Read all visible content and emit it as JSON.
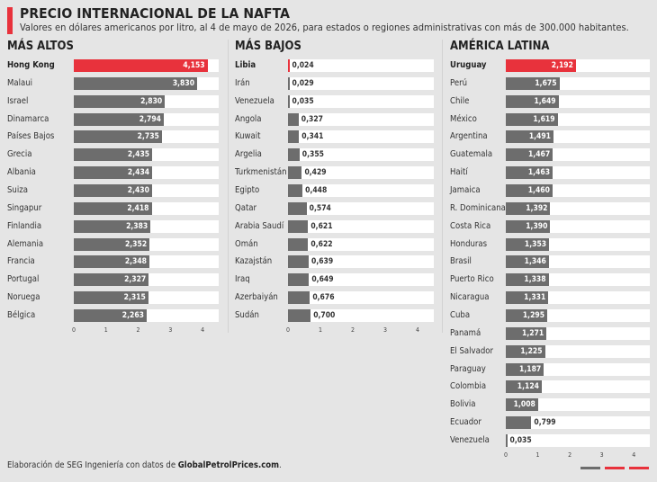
{
  "header": {
    "title": "PRECIO INTERNACIONAL DE LA NAFTA",
    "subtitle": "Valores en dólares americanos por litro, al 4 de mayo de 2026, para estados o regiones administrativas con más de 300.000 habitantes."
  },
  "footer": {
    "prefix": "Elaboración de SEG Ingeniería con datos de ",
    "source": "GlobalPetrolPrices.com",
    "suffix": "."
  },
  "colors": {
    "highlight": "#e8323c",
    "bar": "#6d6d6d",
    "track": "#ffffff",
    "background": "#e5e5e5"
  },
  "chart_data": [
    {
      "type": "bar",
      "title": "MÁS ALTOS",
      "orientation": "horizontal",
      "xlim": [
        0,
        4.5
      ],
      "ticks": [
        "0",
        "1",
        "2",
        "3",
        "4"
      ],
      "highlight": "Hong Kong",
      "categories": [
        "Hong Kong",
        "Malaui",
        "Israel",
        "Dinamarca",
        "Países Bajos",
        "Grecia",
        "Albania",
        "Suiza",
        "Singapur",
        "Finlandia",
        "Alemania",
        "Francia",
        "Portugal",
        "Noruega",
        "Bélgica"
      ],
      "values": [
        4.153,
        3.83,
        2.83,
        2.794,
        2.735,
        2.435,
        2.434,
        2.43,
        2.418,
        2.383,
        2.352,
        2.348,
        2.327,
        2.315,
        2.263
      ],
      "labels": [
        "4,153",
        "3,830",
        "2,830",
        "2,794",
        "2,735",
        "2,435",
        "2,434",
        "2,430",
        "2,418",
        "2,383",
        "2,352",
        "2,348",
        "2,327",
        "2,315",
        "2,263"
      ]
    },
    {
      "type": "bar",
      "title": "MÁS BAJOS",
      "orientation": "horizontal",
      "xlim": [
        0,
        4.5
      ],
      "ticks": [
        "0",
        "1",
        "2",
        "3",
        "4"
      ],
      "highlight": "Libia",
      "categories": [
        "Libia",
        "Irán",
        "Venezuela",
        "Angola",
        "Kuwait",
        "Argelia",
        "Turkmenistán",
        "Egipto",
        "Qatar",
        "Arabia Saudí",
        "Omán",
        "Kazajstán",
        "Iraq",
        "Azerbaiyán",
        "Sudán"
      ],
      "values": [
        0.024,
        0.029,
        0.035,
        0.327,
        0.341,
        0.355,
        0.429,
        0.448,
        0.574,
        0.621,
        0.622,
        0.639,
        0.649,
        0.676,
        0.7
      ],
      "labels": [
        "0,024",
        "0,029",
        "0,035",
        "0,327",
        "0,341",
        "0,355",
        "0,429",
        "0,448",
        "0,574",
        "0,621",
        "0,622",
        "0,639",
        "0,649",
        "0,676",
        "0,700"
      ]
    },
    {
      "type": "bar",
      "title": "AMÉRICA LATINA",
      "orientation": "horizontal",
      "xlim": [
        0,
        4.5
      ],
      "ticks": [
        "0",
        "1",
        "2",
        "3",
        "4"
      ],
      "highlight": "Uruguay",
      "categories": [
        "Uruguay",
        "Perú",
        "Chile",
        "México",
        "Argentina",
        "Guatemala",
        "Haití",
        "Jamaica",
        "R. Dominicana",
        "Costa Rica",
        "Honduras",
        "Brasil",
        "Puerto Rico",
        "Nicaragua",
        "Cuba",
        "Panamá",
        "El Salvador",
        "Paraguay",
        "Colombia",
        "Bolivia",
        "Ecuador",
        "Venezuela"
      ],
      "values": [
        2.192,
        1.675,
        1.649,
        1.619,
        1.491,
        1.467,
        1.463,
        1.46,
        1.392,
        1.39,
        1.353,
        1.346,
        1.338,
        1.331,
        1.295,
        1.271,
        1.225,
        1.187,
        1.124,
        1.008,
        0.799,
        0.035
      ],
      "labels": [
        "2,192",
        "1,675",
        "1,649",
        "1,619",
        "1,491",
        "1,467",
        "1,463",
        "1,460",
        "1,392",
        "1,390",
        "1,353",
        "1,346",
        "1,338",
        "1,331",
        "1,295",
        "1,271",
        "1,225",
        "1,187",
        "1,124",
        "1,008",
        "0,799",
        "0,035"
      ]
    }
  ]
}
